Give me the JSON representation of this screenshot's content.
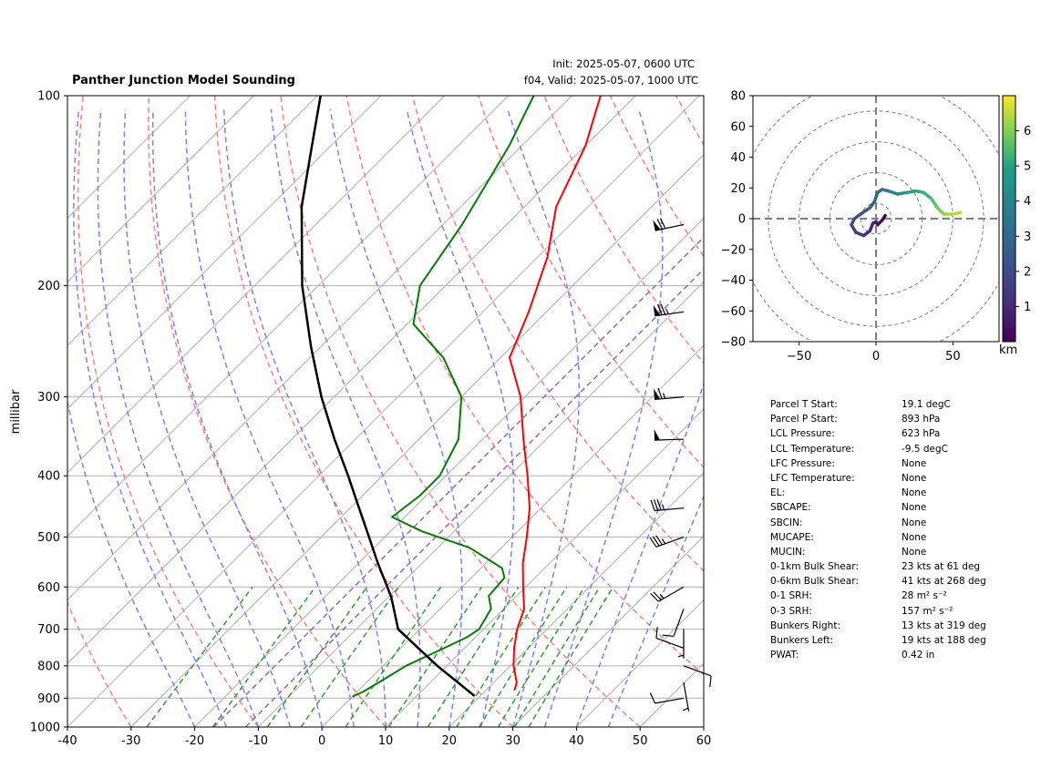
{
  "header": {
    "title": "Panther Junction Model Sounding",
    "init": "Init: 2025-05-07, 0600 UTC",
    "valid": "f04, Valid: 2025-05-07, 1000 UTC"
  },
  "chart_data": [
    {
      "type": "line",
      "subtype": "skew-T log-P diagram",
      "title": "Panther Junction Model Sounding",
      "ylabel": "millibar",
      "xlabel": "",
      "xlim": [
        -40,
        60
      ],
      "ylim": [
        1000,
        100
      ],
      "y_scale": "log",
      "x_ticks": [
        "-40",
        "-30",
        "-20",
        "-10",
        "0",
        "10",
        "20",
        "30",
        "40",
        "50",
        "60"
      ],
      "y_ticks": [
        "100",
        "200",
        "300",
        "400",
        "500",
        "600",
        "700",
        "800",
        "900",
        "1000"
      ],
      "grid": true,
      "colors": {
        "temperature": "#ff0000",
        "dewpoint": "#008000",
        "parcel": "#000000",
        "dry_adiabats": "#ff7f7f",
        "moist_adiabats": "#7f7fff",
        "mixing_ratio": "#2ca02c",
        "isotherms": "#b0b0b0",
        "dgz_band": "#9467bd"
      },
      "series": [
        {
          "key": "temperature",
          "points": [
            {
              "p": 875,
              "t": 24.5
            },
            {
              "p": 850,
              "t": 23.6
            },
            {
              "p": 800,
              "t": 20.5
            },
            {
              "p": 750,
              "t": 17.8
            },
            {
              "p": 700,
              "t": 15.3
            },
            {
              "p": 650,
              "t": 13.2
            },
            {
              "p": 600,
              "t": 9.6
            },
            {
              "p": 550,
              "t": 5.8
            },
            {
              "p": 500,
              "t": 2.3
            },
            {
              "p": 450,
              "t": -1.8
            },
            {
              "p": 400,
              "t": -7.2
            },
            {
              "p": 350,
              "t": -13.6
            },
            {
              "p": 300,
              "t": -20.7
            },
            {
              "p": 260,
              "t": -28.6
            },
            {
              "p": 220,
              "t": -32.8
            },
            {
              "p": 180,
              "t": -38.5
            },
            {
              "p": 150,
              "t": -45.0
            },
            {
              "p": 120,
              "t": -50.0
            },
            {
              "p": 100,
              "t": -55.5
            }
          ]
        },
        {
          "key": "dewpoint",
          "points": [
            {
              "p": 895,
              "t": 0.0
            },
            {
              "p": 880,
              "t": 0.9
            },
            {
              "p": 850,
              "t": 1.9
            },
            {
              "p": 800,
              "t": 3.6
            },
            {
              "p": 750,
              "t": 6.8
            },
            {
              "p": 720,
              "t": 8.7
            },
            {
              "p": 700,
              "t": 9.3
            },
            {
              "p": 650,
              "t": 8.0
            },
            {
              "p": 620,
              "t": 5.6
            },
            {
              "p": 580,
              "t": 5.2
            },
            {
              "p": 560,
              "t": 3.3
            },
            {
              "p": 520,
              "t": -5.0
            },
            {
              "p": 490,
              "t": -15.0
            },
            {
              "p": 465,
              "t": -22.0
            },
            {
              "p": 430,
              "t": -21.0
            },
            {
              "p": 400,
              "t": -21.0
            },
            {
              "p": 350,
              "t": -23.8
            },
            {
              "p": 300,
              "t": -30.0
            },
            {
              "p": 260,
              "t": -39.0
            },
            {
              "p": 230,
              "t": -49.0
            },
            {
              "p": 200,
              "t": -54.0
            },
            {
              "p": 160,
              "t": -57.0
            },
            {
              "p": 120,
              "t": -62.0
            },
            {
              "p": 100,
              "t": -66.0
            }
          ]
        },
        {
          "key": "parcel",
          "points": [
            {
              "p": 893,
              "t": 19.1
            },
            {
              "p": 800,
              "t": 8.5
            },
            {
              "p": 700,
              "t": -3.4
            },
            {
              "p": 623,
              "t": -9.5
            },
            {
              "p": 550,
              "t": -17.0
            },
            {
              "p": 500,
              "t": -22.5
            },
            {
              "p": 450,
              "t": -28.6
            },
            {
              "p": 400,
              "t": -35.4
            },
            {
              "p": 350,
              "t": -43.3
            },
            {
              "p": 300,
              "t": -52.0
            },
            {
              "p": 250,
              "t": -61.5
            },
            {
              "p": 200,
              "t": -72.5
            },
            {
              "p": 150,
              "t": -85.0
            },
            {
              "p": 120,
              "t": -93.0
            },
            {
              "p": 100,
              "t": -99.5
            }
          ]
        }
      ],
      "wind_barbs": [
        {
          "p": 900,
          "speed_kt": 10,
          "direction_deg": 260
        },
        {
          "p": 850,
          "speed_kt": 5,
          "direction_deg": 170
        },
        {
          "p": 800,
          "speed_kt": 10,
          "direction_deg": 110
        },
        {
          "p": 750,
          "speed_kt": 12,
          "direction_deg": 290
        },
        {
          "p": 700,
          "speed_kt": 5,
          "direction_deg": 180
        },
        {
          "p": 650,
          "speed_kt": 10,
          "direction_deg": 200
        },
        {
          "p": 600,
          "speed_kt": 25,
          "direction_deg": 240
        },
        {
          "p": 500,
          "speed_kt": 35,
          "direction_deg": 250
        },
        {
          "p": 450,
          "speed_kt": 35,
          "direction_deg": 265
        },
        {
          "p": 350,
          "speed_kt": 50,
          "direction_deg": 268
        },
        {
          "p": 300,
          "speed_kt": 65,
          "direction_deg": 265
        },
        {
          "p": 220,
          "speed_kt": 75,
          "direction_deg": 262
        },
        {
          "p": 160,
          "speed_kt": 70,
          "direction_deg": 258
        }
      ]
    },
    {
      "type": "line",
      "subtype": "hodograph",
      "xlim": [
        -80,
        80
      ],
      "ylim": [
        -80,
        80
      ],
      "x_ticks": [
        "−50",
        "0",
        "50"
      ],
      "y_ticks": [
        "80",
        "60",
        "40",
        "20",
        "0",
        "−20",
        "−40",
        "−60",
        "−80"
      ],
      "rings": [
        10,
        30,
        50,
        70,
        90
      ],
      "colorbar": {
        "label": "km",
        "ticks": [
          "1",
          "2",
          "3",
          "4",
          "5",
          "6"
        ],
        "range": [
          0,
          7
        ],
        "colormap": "viridis"
      },
      "points": [
        {
          "u": 6,
          "v": 2,
          "h": 0.0
        },
        {
          "u": 4,
          "v": -1,
          "h": 0.15
        },
        {
          "u": 1,
          "v": -4,
          "h": 0.3
        },
        {
          "u": 0,
          "v": -2,
          "h": 0.45
        },
        {
          "u": -2,
          "v": -3,
          "h": 0.6
        },
        {
          "u": -4,
          "v": -8,
          "h": 0.8
        },
        {
          "u": -8,
          "v": -11,
          "h": 1.0
        },
        {
          "u": -13,
          "v": -9,
          "h": 1.2
        },
        {
          "u": -16,
          "v": -4,
          "h": 1.4
        },
        {
          "u": -14,
          "v": 0,
          "h": 1.6
        },
        {
          "u": -10,
          "v": 3,
          "h": 1.8
        },
        {
          "u": -4,
          "v": 7,
          "h": 2.0
        },
        {
          "u": -1,
          "v": 11,
          "h": 2.2
        },
        {
          "u": 1,
          "v": 17,
          "h": 2.4
        },
        {
          "u": 4,
          "v": 19,
          "h": 2.7
        },
        {
          "u": 8,
          "v": 18,
          "h": 3.0
        },
        {
          "u": 14,
          "v": 16,
          "h": 3.3
        },
        {
          "u": 20,
          "v": 17,
          "h": 3.7
        },
        {
          "u": 26,
          "v": 18,
          "h": 4.1
        },
        {
          "u": 31,
          "v": 17,
          "h": 4.5
        },
        {
          "u": 36,
          "v": 13,
          "h": 4.9
        },
        {
          "u": 40,
          "v": 7,
          "h": 5.3
        },
        {
          "u": 44,
          "v": 3,
          "h": 5.7
        },
        {
          "u": 50,
          "v": 3,
          "h": 6.1
        },
        {
          "u": 55,
          "v": 4,
          "h": 6.5
        }
      ]
    }
  ],
  "parameters": [
    {
      "label": "Parcel T Start:",
      "value": "19.1 degC"
    },
    {
      "label": "Parcel P Start:",
      "value": "893 hPa"
    },
    {
      "label": "LCL Pressure:",
      "value": "623 hPa"
    },
    {
      "label": "LCL Temperature:",
      "value": "-9.5 degC"
    },
    {
      "label": "LFC Pressure:",
      "value": "None"
    },
    {
      "label": "LFC Temperature:",
      "value": "None"
    },
    {
      "label": "EL:",
      "value": "None"
    },
    {
      "label": "SBCAPE:",
      "value": "None"
    },
    {
      "label": "SBCIN:",
      "value": "None"
    },
    {
      "label": "MUCAPE:",
      "value": "None"
    },
    {
      "label": "MUCIN:",
      "value": "None"
    },
    {
      "label": "0-1km Bulk Shear:",
      "value": "23 kts at 61 deg"
    },
    {
      "label": "0-6km Bulk Shear:",
      "value": "41 kts at 268 deg"
    },
    {
      "label": "0-1 SRH:",
      "value": "28 m² s⁻²"
    },
    {
      "label": "0-3 SRH:",
      "value": "157 m² s⁻²"
    },
    {
      "label": "Bunkers Right:",
      "value": "13 kts at 319 deg"
    },
    {
      "label": "Bunkers Left:",
      "value": "19 kts at 188 deg"
    },
    {
      "label": "PWAT:",
      "value": "0.42 in"
    }
  ]
}
